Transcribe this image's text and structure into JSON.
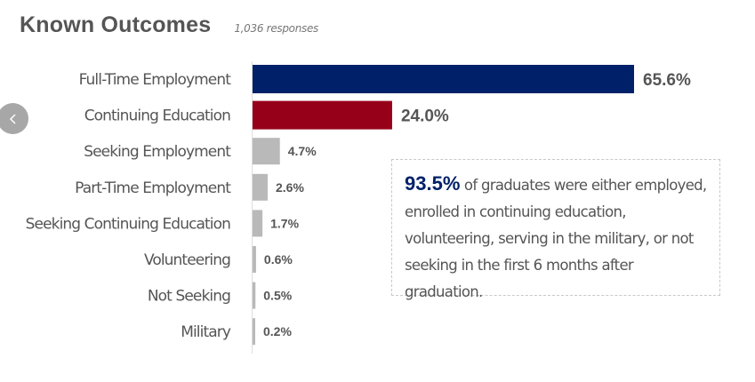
{
  "header": {
    "title": "Known Outcomes",
    "subtitle": "1,036 responses"
  },
  "nav": {
    "prev_icon": "chevron-left-icon"
  },
  "callout": {
    "highlight": "93.5%",
    "text": " of graduates were either employed, enrolled in continuing education, volunteering, serving in the military, or not seeking in the first 6 months after graduation."
  },
  "chart_data": {
    "type": "bar",
    "orientation": "horizontal",
    "title": "Known Outcomes",
    "subtitle": "1,036 responses",
    "categories": [
      "Full-Time Employment",
      "Continuing Education",
      "Seeking Employment",
      "Part-Time Employment",
      "Seeking Continuing Education",
      "Volunteering",
      "Not Seeking",
      "Military"
    ],
    "values": [
      65.6,
      24.0,
      4.7,
      2.6,
      1.7,
      0.6,
      0.5,
      0.2
    ],
    "value_labels": [
      "65.6%",
      "24.0%",
      "4.7%",
      "2.6%",
      "1.7%",
      "0.6%",
      "0.5%",
      "0.2%"
    ],
    "colors": [
      "#002169",
      "#970019",
      "#b9b9b9",
      "#b9b9b9",
      "#b9b9b9",
      "#b9b9b9",
      "#b9b9b9",
      "#b9b9b9"
    ],
    "xlim": [
      0,
      65.6
    ],
    "grid": false,
    "legend": "none"
  }
}
